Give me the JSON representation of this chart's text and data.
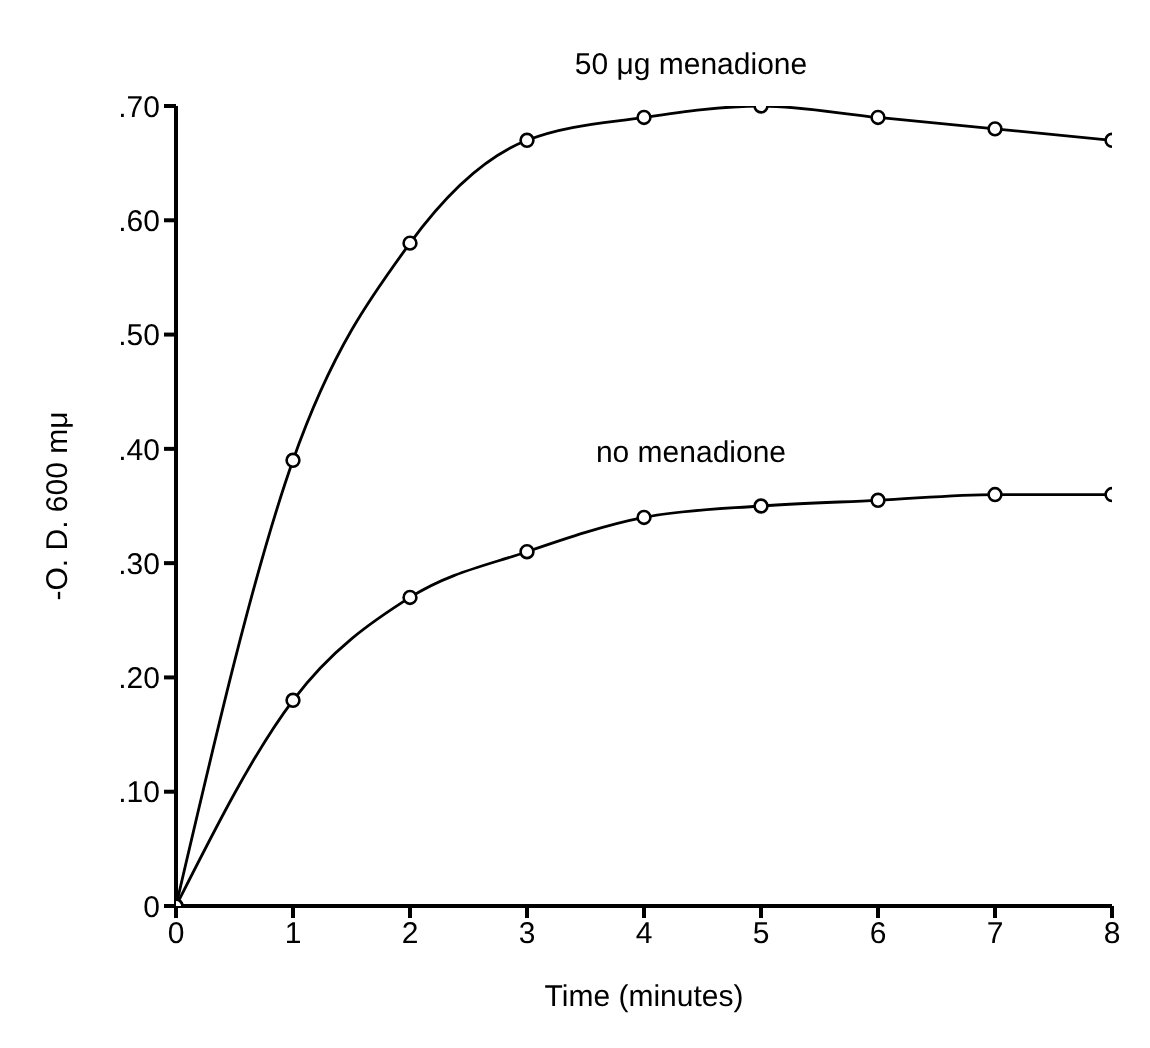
{
  "chart_data": {
    "type": "line",
    "xlabel": "Time (minutes)",
    "ylabel": "-O. D. 600 mμ",
    "x": [
      0,
      1,
      2,
      3,
      4,
      5,
      6,
      7,
      8
    ],
    "series": [
      {
        "name": "50 μg menadione",
        "color": "#000000",
        "values": [
          0,
          0.39,
          0.58,
          0.67,
          0.69,
          0.7,
          0.69,
          0.68,
          0.67
        ]
      },
      {
        "name": "no menadione",
        "color": "#000000",
        "values": [
          0,
          0.18,
          0.27,
          0.31,
          0.34,
          0.35,
          0.355,
          0.36,
          0.36
        ]
      }
    ],
    "xlim": [
      0,
      8
    ],
    "xticks": [
      0,
      1,
      2,
      3,
      4,
      5,
      6,
      7,
      8
    ],
    "ylim": [
      0,
      0.7
    ],
    "yticks": [
      {
        "value": 0,
        "label": "0"
      },
      {
        "value": 0.1,
        "label": ".10"
      },
      {
        "value": 0.2,
        "label": ".20"
      },
      {
        "value": 0.3,
        "label": ".30"
      },
      {
        "value": 0.4,
        "label": ".40"
      },
      {
        "value": 0.5,
        "label": ".50"
      },
      {
        "value": 0.6,
        "label": ".60"
      },
      {
        "value": 0.7,
        "label": ".70"
      }
    ],
    "grid": false,
    "legend": false,
    "marker": "circle",
    "line_style": "solid"
  }
}
